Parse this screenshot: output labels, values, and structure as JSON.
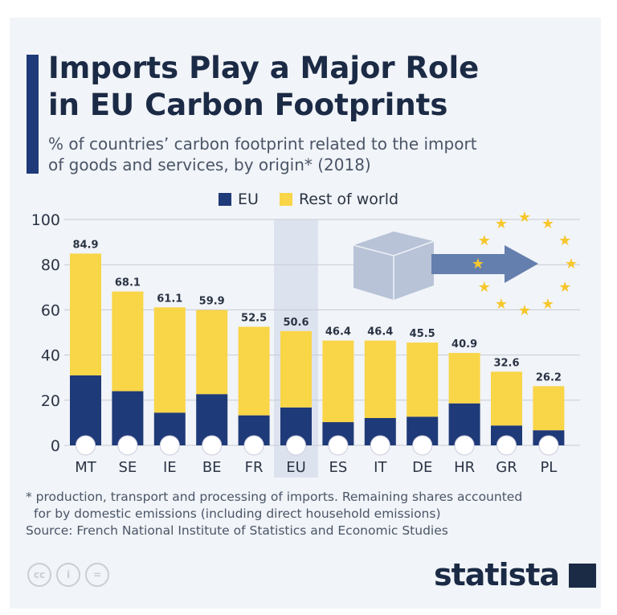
{
  "header": {
    "title_line1": "Imports Play a Major Role",
    "title_line2": "in EU Carbon Footprints",
    "subtitle_line1": "% of countries’ carbon footprint related to the import",
    "subtitle_line2": "of goods and services, by origin* (2018)"
  },
  "colors": {
    "eu": "#1f3a78",
    "rest": "#f9d548",
    "highlight": "#dde3ee"
  },
  "chart_data": {
    "type": "bar",
    "stacked": true,
    "categories": [
      "MT",
      "SE",
      "IE",
      "BE",
      "FR",
      "EU",
      "ES",
      "IT",
      "DE",
      "HR",
      "GR",
      "PL"
    ],
    "series": [
      {
        "name": "EU",
        "values": [
          31,
          24,
          14.5,
          22.7,
          13.3,
          16.8,
          10.3,
          12.1,
          12.7,
          18.6,
          8.8,
          6.7
        ]
      },
      {
        "name": "Rest of world",
        "values": [
          53.9,
          44.1,
          46.6,
          37.2,
          39.2,
          33.8,
          36.1,
          34.3,
          32.8,
          22.3,
          23.8,
          19.5
        ]
      }
    ],
    "totals": [
      "84.9",
      "68.1",
      "61.1",
      "59.9",
      "52.5",
      "50.6",
      "46.4",
      "46.4",
      "45.5",
      "40.9",
      "32.6",
      "26.2"
    ],
    "yticks": [
      "0",
      "20",
      "40",
      "60",
      "80",
      "100"
    ],
    "ylim": [
      0,
      100
    ],
    "grid": true,
    "legend": "top",
    "highlighted": "EU"
  },
  "footer": {
    "note_line1": "* production, transport and processing of imports. Remaining shares accounted",
    "note_line2": "for by domestic emissions (including direct household emissions)",
    "source": "Source: French National Institute of Statistics and Economic Studies",
    "logo": "statista",
    "cc_labels": [
      "cc",
      "i",
      "="
    ]
  }
}
